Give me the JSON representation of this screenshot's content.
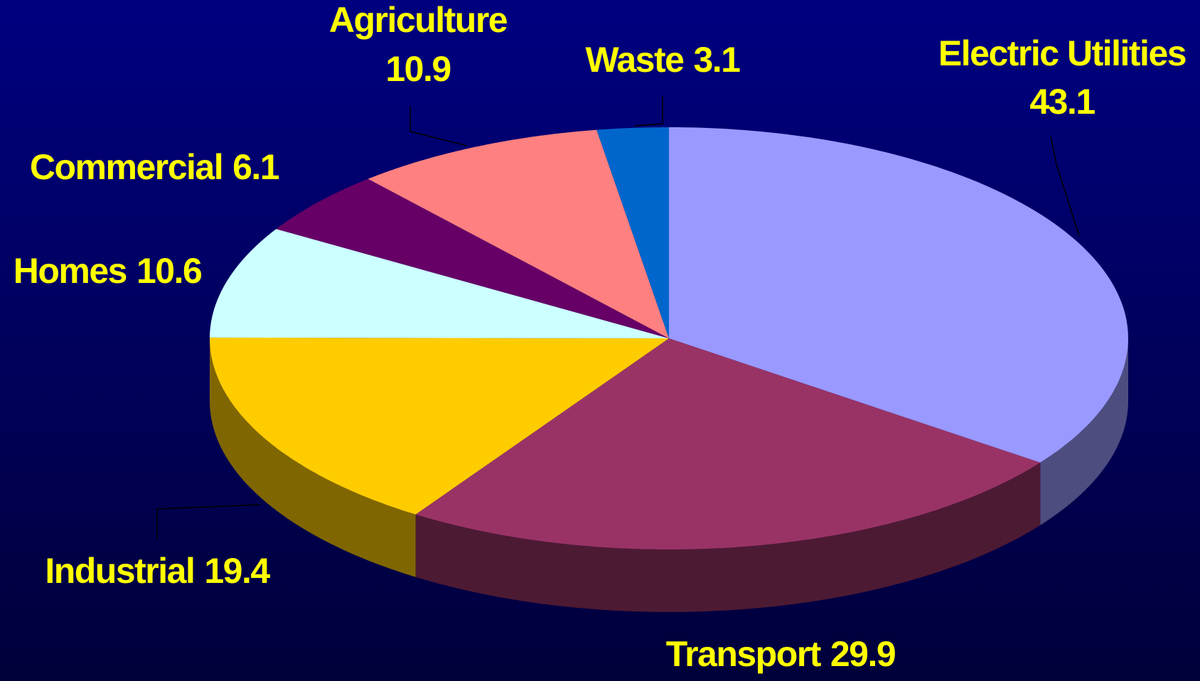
{
  "chart_data": {
    "type": "pie3d",
    "categories": [
      "Electric Utilities",
      "Transport",
      "Industrial",
      "Homes",
      "Commercial",
      "Agriculture",
      "Waste"
    ],
    "values": [
      43.1,
      29.9,
      19.4,
      10.6,
      6.1,
      10.9,
      3.1
    ],
    "colors": [
      "#9999ff",
      "#993366",
      "#ffcc00",
      "#ccffff",
      "#660066",
      "#ff8080",
      "#0066cc"
    ]
  }
}
